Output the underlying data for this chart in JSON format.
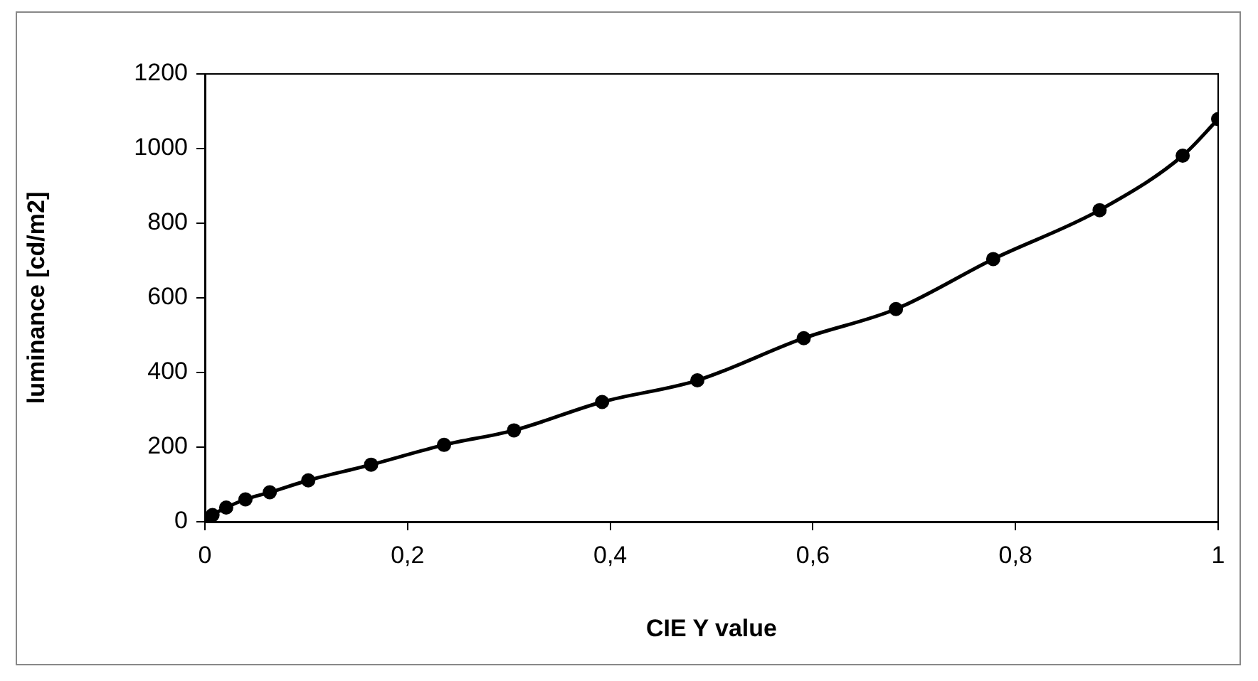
{
  "chart_data": {
    "type": "line",
    "xlabel": "CIE Y value",
    "ylabel": "luminance [cd/m2]",
    "x": [
      0,
      0.0075,
      0.021,
      0.04,
      0.064,
      0.102,
      0.164,
      0.236,
      0.305,
      0.392,
      0.486,
      0.591,
      0.682,
      0.778,
      0.883,
      0.965,
      1
    ],
    "series": [
      {
        "color": "#000000",
        "values": [
          0,
          18,
          38,
          60,
          79,
          111,
          153,
          206,
          245,
          321,
          379,
          492,
          570,
          704,
          835,
          981,
          1079
        ]
      }
    ],
    "xlim": [
      0,
      1
    ],
    "xticks": [
      0,
      {
        "value": 0.2,
        "label": "0,2"
      },
      {
        "value": 0.4,
        "label": "0,4"
      },
      {
        "value": 0.6,
        "label": "0,6"
      },
      {
        "value": 0.8,
        "label": "0,8"
      },
      1
    ],
    "ylim": [
      0,
      1200
    ],
    "yticks": [
      0,
      200,
      400,
      600,
      800,
      1000,
      1200
    ],
    "grid": false,
    "legend": false,
    "marker": "circle",
    "line_style": "solid"
  }
}
